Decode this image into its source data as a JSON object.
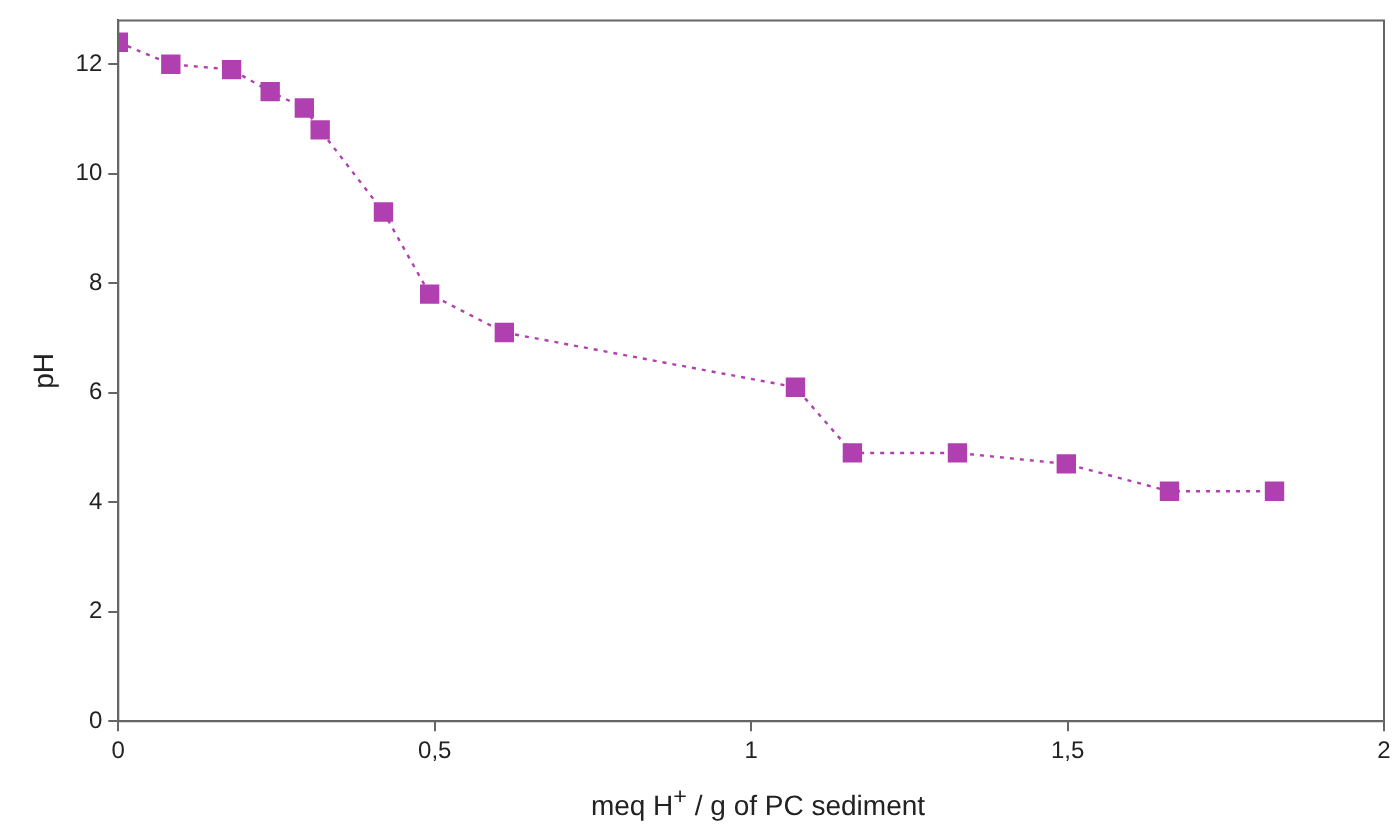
{
  "chart_data": {
    "type": "line",
    "xlabel": "meq H$^{+}$ / g of PC sediment",
    "ylabel": "pH",
    "x": [
      0,
      0.083,
      0.179,
      0.24,
      0.294,
      0.319,
      0.419,
      0.492,
      0.61,
      1.07,
      1.16,
      1.326,
      1.498,
      1.661,
      1.827
    ],
    "series": [
      {
        "color": "#b040b0",
        "values": [
          12.4,
          12.0,
          11.9,
          11.5,
          11.2,
          10.8,
          9.3,
          7.8,
          7.1,
          6.1,
          4.9,
          4.9,
          4.7,
          4.2,
          4.2
        ]
      }
    ],
    "xlim": [
      0,
      2
    ],
    "xticks": [
      0,
      {
        "value": 0.5,
        "label": "0,5"
      },
      1,
      {
        "value": 1.5,
        "label": "1,5"
      },
      2
    ],
    "ylim": [
      0,
      12.8
    ],
    "yticks": [
      0,
      2,
      4,
      6,
      8,
      10,
      12
    ],
    "grid": false,
    "legend": false,
    "marker": "square",
    "line_style": "dotted"
  }
}
